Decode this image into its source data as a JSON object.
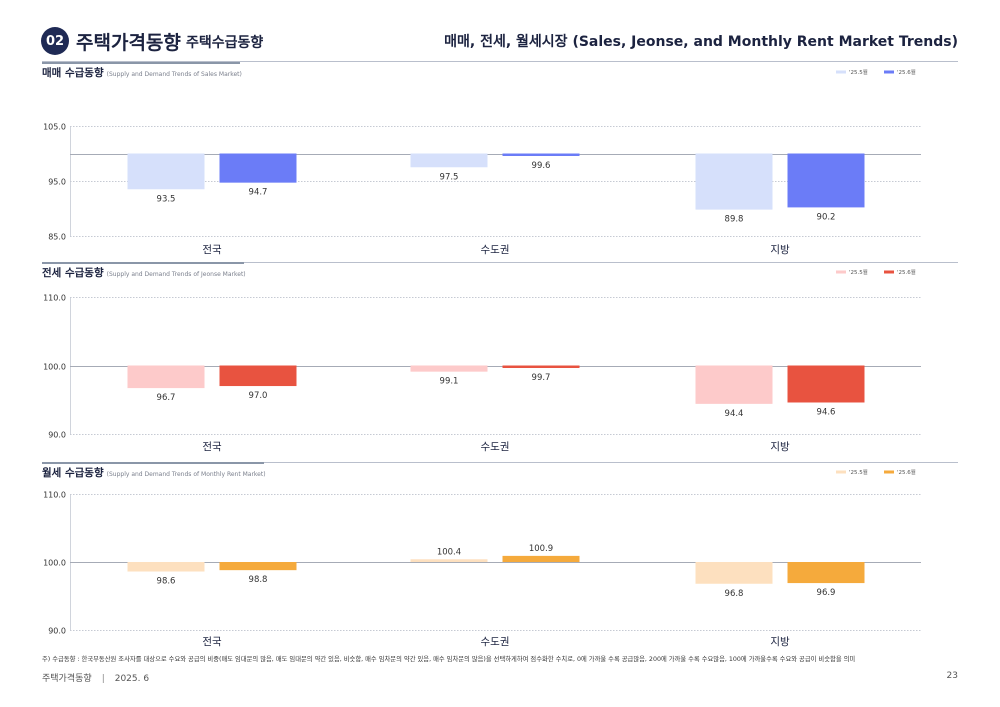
{
  "header": {
    "section_number": "02",
    "section_title": "주택가격동향",
    "section_subtitle": "주택수급동향",
    "right_title": "매매, 전세, 월세시장 (Sales, Jeonse, and Monthly Rent Market Trends)"
  },
  "chart_data": [
    {
      "type": "bar",
      "title": "매매 수급동향",
      "subtitle": "(Supply and Demand Trends of Sales Market)",
      "categories": [
        "전국",
        "수도권",
        "지방"
      ],
      "series": [
        {
          "name": "'25.5월",
          "values": [
            93.5,
            97.5,
            89.8
          ],
          "color": "#d6e0fb"
        },
        {
          "name": "'25.6월",
          "values": [
            94.7,
            99.6,
            90.2
          ],
          "color": "#6b7cf7"
        }
      ],
      "baseline": 100,
      "ylim": [
        85,
        105
      ],
      "yticks": [
        "105.0",
        "95.0",
        "85.0"
      ],
      "ytick_values": [
        105,
        95,
        85
      ]
    },
    {
      "type": "bar",
      "title": "전세 수급동향",
      "subtitle": "(Supply and Demand Trends of Jeonse Market)",
      "categories": [
        "전국",
        "수도권",
        "지방"
      ],
      "series": [
        {
          "name": "'25.5월",
          "values": [
            96.7,
            99.1,
            94.4
          ],
          "color": "#fdcaca"
        },
        {
          "name": "'25.6월",
          "values": [
            97.0,
            99.7,
            94.6
          ],
          "color": "#e85340"
        }
      ],
      "baseline": 100,
      "ylim": [
        90,
        110
      ],
      "yticks": [
        "110.0",
        "100.0",
        "90.0"
      ],
      "ytick_values": [
        110,
        100,
        90
      ]
    },
    {
      "type": "bar",
      "title": "월세 수급동향",
      "subtitle": "(Supply and Demand Trends of Monthly Rent Market)",
      "categories": [
        "전국",
        "수도권",
        "지방"
      ],
      "series": [
        {
          "name": "'25.5월",
          "values": [
            98.6,
            100.4,
            96.8
          ],
          "color": "#fde0bf"
        },
        {
          "name": "'25.6월",
          "values": [
            98.8,
            100.9,
            96.9
          ],
          "color": "#f5aa3c"
        }
      ],
      "baseline": 100,
      "ylim": [
        90,
        110
      ],
      "yticks": [
        "110.0",
        "100.0",
        "90.0"
      ],
      "ytick_values": [
        110,
        100,
        90
      ]
    }
  ],
  "footnote": "주) 수급동향 : 한국부동산원 조사자를 대상으로 수요와 공급의 비중(매도 임대문의 많음, 매도 임대문의 약간 있음, 비슷함, 매수 임차문의 약간 있음, 매수 임차문의 많음)을 선택하게하여 점수화한 수치로, 0에 가까울 수록 공급많음, 200에 가까울 수록 수요많음, 100에 가까울수록 수요와 공급이 비슷함을 의미",
  "footer": {
    "publication": "주택가격동향",
    "separator": "|",
    "date": "2025. 6",
    "page": "23"
  }
}
